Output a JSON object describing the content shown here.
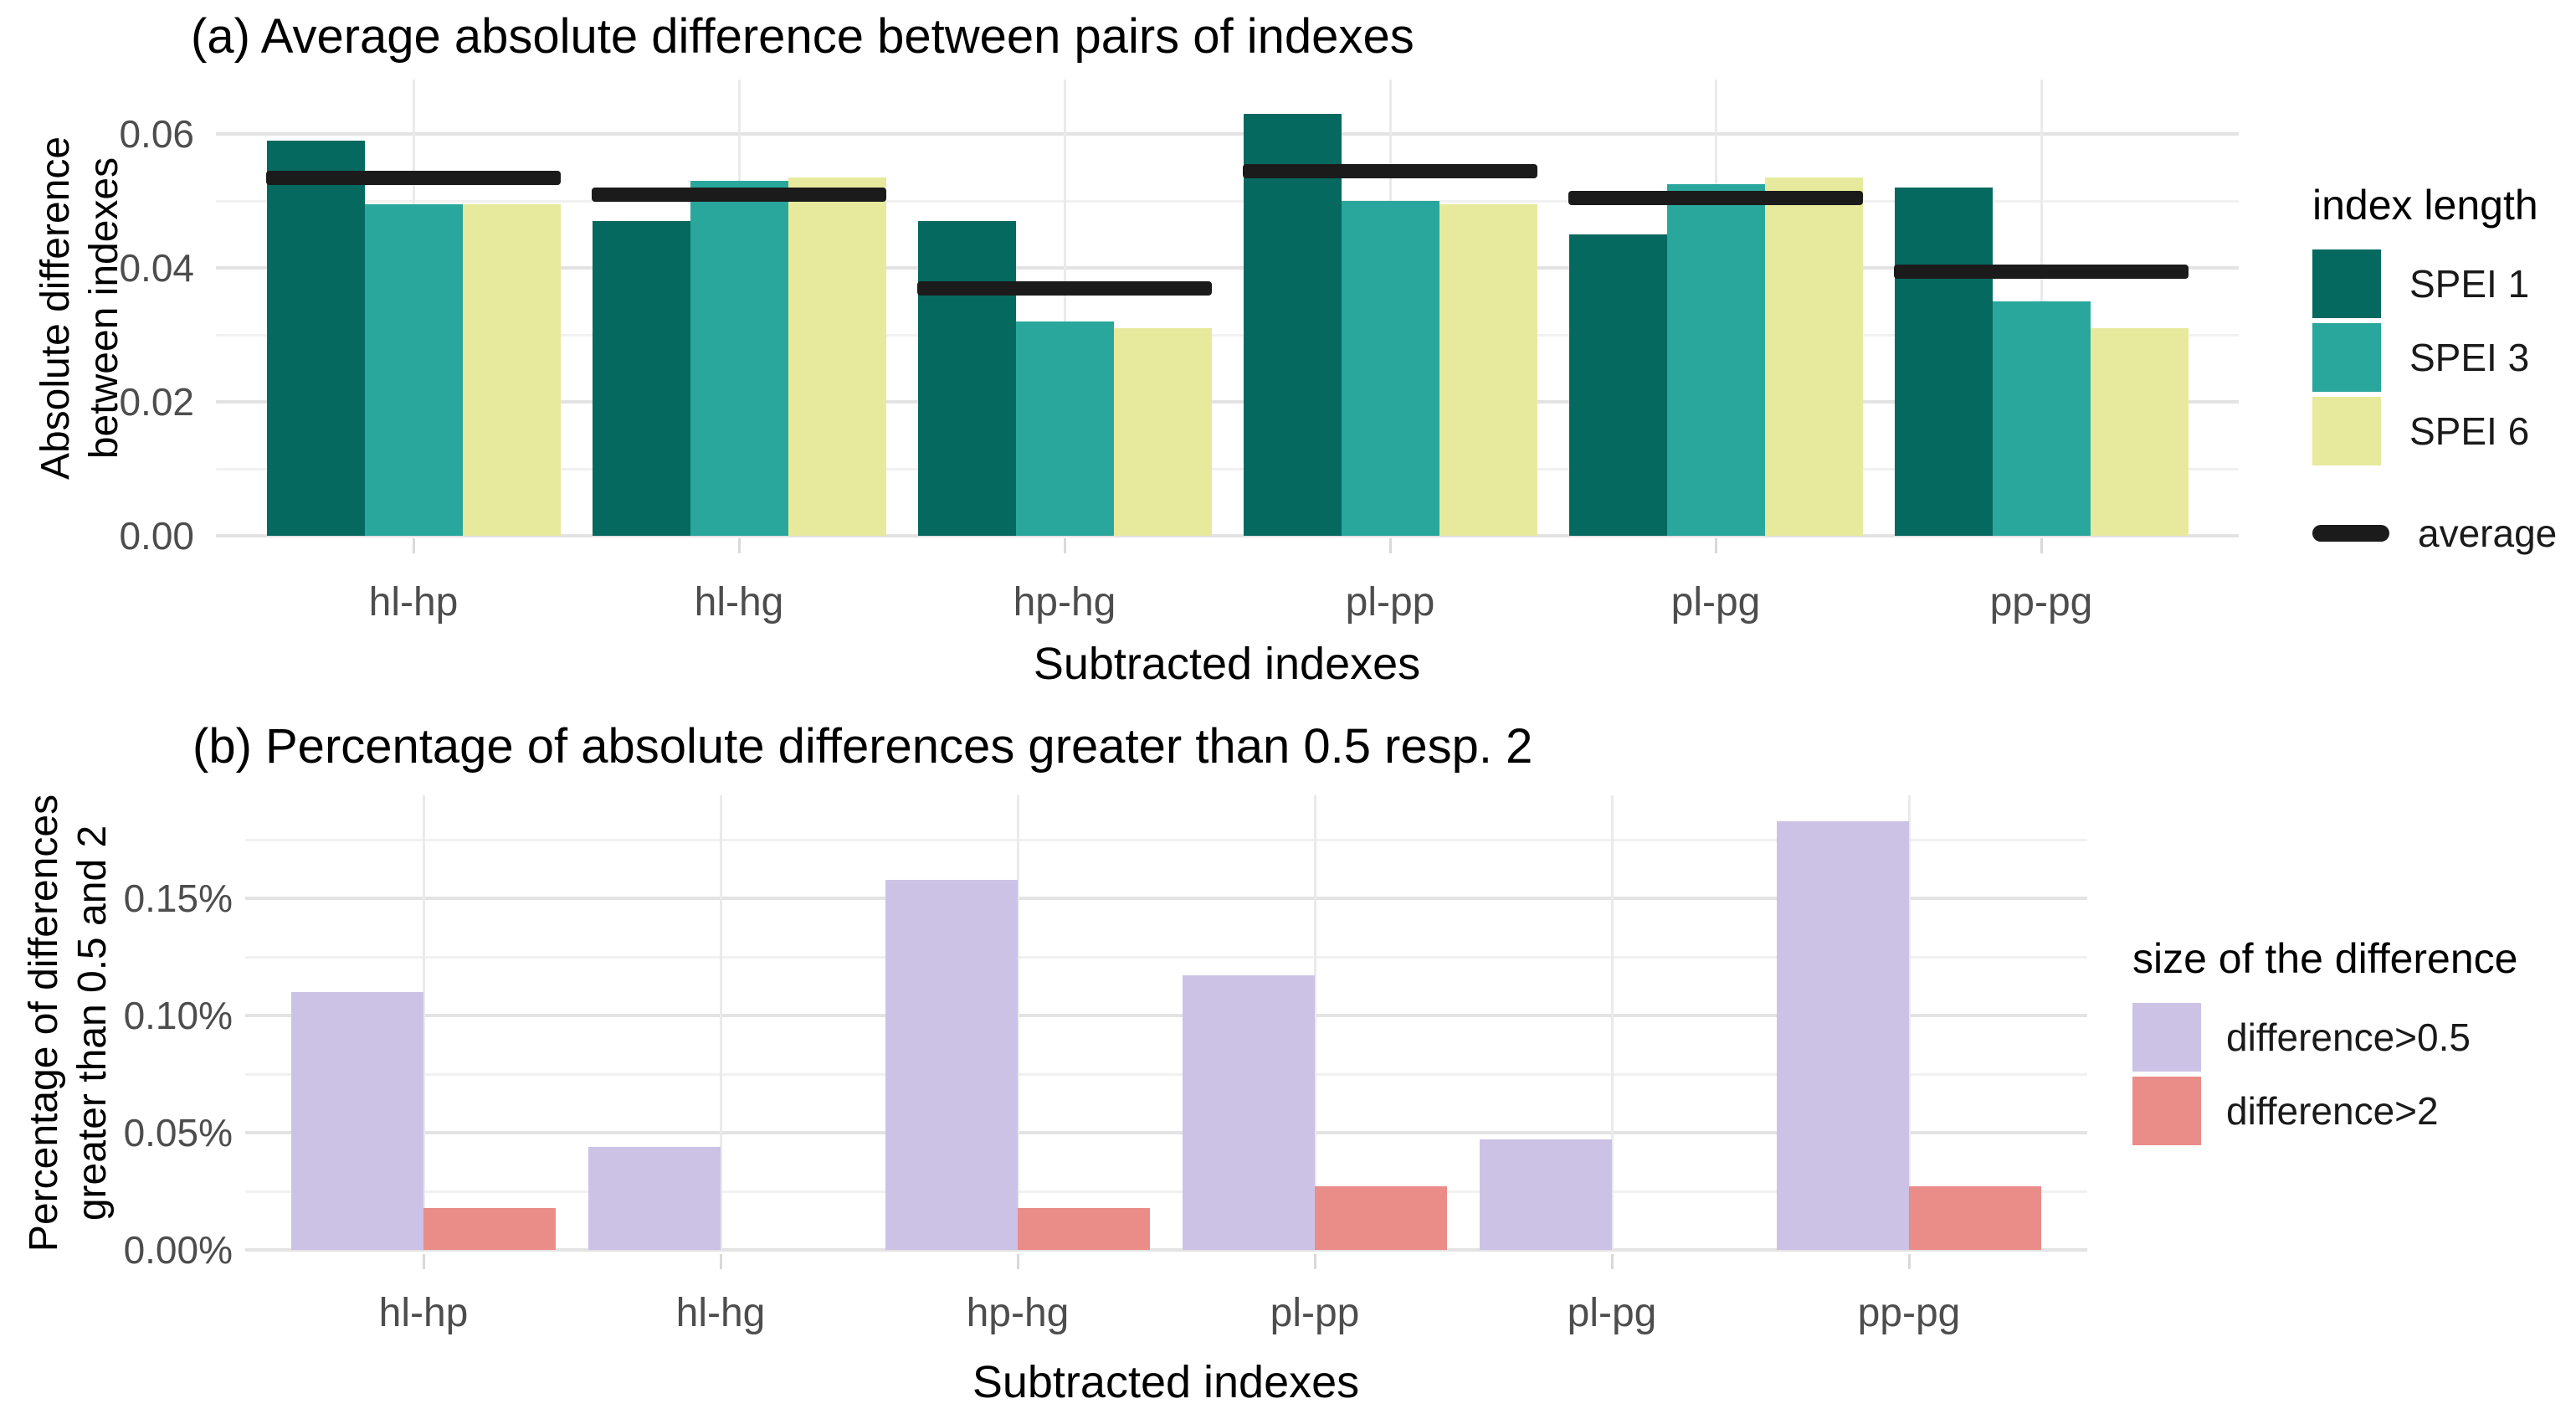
{
  "colors": {
    "spei1": "#05695f",
    "spei3": "#2aa79c",
    "spei6": "#e7ea9d",
    "average": "#1b1b1b",
    "diff05": "#ccc2e6",
    "diff2": "#ea8c88",
    "grid_major": "#e3e3e3",
    "grid_minor": "#f1f1f1",
    "tick_text": "#4d4d4d"
  },
  "chart_data": [
    {
      "type": "bar",
      "title": "(a) Average absolute difference between pairs of indexes",
      "xlabel": "Subtracted indexes",
      "ylabel": "Absolute difference between indexes",
      "ylabel_lines": [
        "Absolute difference",
        "between indexes"
      ],
      "categories": [
        "hl-hp",
        "hl-hg",
        "hp-hg",
        "pl-pp",
        "pl-pg",
        "pp-pg"
      ],
      "series": [
        {
          "name": "SPEI 1",
          "color_key": "spei1",
          "values": [
            0.059,
            0.047,
            0.047,
            0.063,
            0.045,
            0.052
          ]
        },
        {
          "name": "SPEI 3",
          "color_key": "spei3",
          "values": [
            0.0495,
            0.053,
            0.032,
            0.05,
            0.0525,
            0.035
          ]
        },
        {
          "name": "SPEI 6",
          "color_key": "spei6",
          "values": [
            0.0495,
            0.0535,
            0.031,
            0.0495,
            0.0535,
            0.031
          ]
        }
      ],
      "average": {
        "name": "average",
        "color_key": "average",
        "values": [
          0.0535,
          0.051,
          0.037,
          0.0545,
          0.0505,
          0.0395
        ]
      },
      "yticks": [
        {
          "v": 0.0,
          "label": "0.00"
        },
        {
          "v": 0.02,
          "label": "0.02"
        },
        {
          "v": 0.04,
          "label": "0.04"
        },
        {
          "v": 0.06,
          "label": "0.06"
        }
      ],
      "minor_gridlines": [
        0.01,
        0.03,
        0.05
      ],
      "ylim": [
        0,
        0.068
      ],
      "grid": true,
      "legend_position": "right",
      "legend_title": "index length"
    },
    {
      "type": "bar",
      "title": "(b) Percentage of absolute differences greater than 0.5 resp. 2",
      "xlabel": "Subtracted indexes",
      "ylabel": "Percentage of differences greater than 0.5 and 2",
      "ylabel_lines": [
        "Percentage of differences",
        "greater than 0.5 and 2"
      ],
      "categories": [
        "hl-hp",
        "hl-hg",
        "hp-hg",
        "pl-pp",
        "pl-pg",
        "pp-pg"
      ],
      "series": [
        {
          "name": "difference>0.5",
          "color_key": "diff05",
          "values": [
            0.11,
            0.044,
            0.158,
            0.117,
            0.047,
            0.183
          ]
        },
        {
          "name": "difference>2",
          "color_key": "diff2",
          "values": [
            0.018,
            0,
            0.018,
            0.027,
            0,
            0.027
          ]
        }
      ],
      "yticks": [
        {
          "v": 0.0,
          "label": "0.00%"
        },
        {
          "v": 0.05,
          "label": "0.05%"
        },
        {
          "v": 0.1,
          "label": "0.10%"
        },
        {
          "v": 0.15,
          "label": "0.15%"
        }
      ],
      "minor_gridlines": [
        0.025,
        0.075,
        0.125,
        0.175
      ],
      "ylim": [
        0,
        0.194
      ],
      "grid": true,
      "legend_position": "right",
      "legend_title": "size of the difference"
    }
  ]
}
